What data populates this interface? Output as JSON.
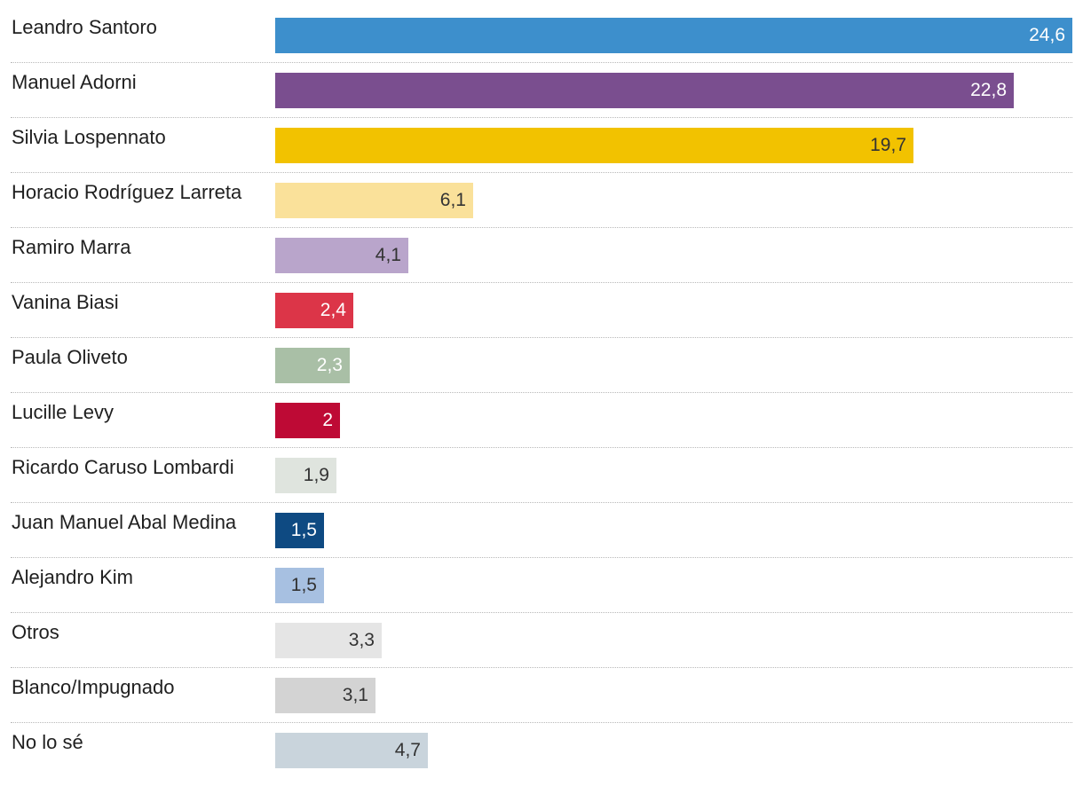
{
  "chart_data": {
    "type": "bar",
    "orientation": "horizontal",
    "title": "",
    "xlabel": "",
    "ylabel": "",
    "xlim": [
      0,
      24.6
    ],
    "grid": false,
    "categories": [
      "Leandro Santoro",
      "Manuel Adorni",
      "Silvia Lospennato",
      "Horacio Rodríguez Larreta",
      "Ramiro Marra",
      "Vanina Biasi",
      "Paula Oliveto",
      "Lucille Levy",
      "Ricardo Caruso Lombardi",
      "Juan Manuel Abal Medina",
      "Alejandro Kim",
      "Otros",
      "Blanco/Impugnado",
      "No lo sé"
    ],
    "values": [
      24.6,
      22.8,
      19.7,
      6.1,
      4.1,
      2.4,
      2.3,
      2,
      1.9,
      1.5,
      1.5,
      3.3,
      3.1,
      4.7
    ],
    "value_labels": [
      "24,6",
      "22,8",
      "19,7",
      "6,1",
      "4,1",
      "2,4",
      "2,3",
      "2",
      "1,9",
      "1,5",
      "1,5",
      "3,3",
      "3,1",
      "4,7"
    ],
    "colors": [
      "#3d8fcc",
      "#7a4e8f",
      "#f2c200",
      "#fae19a",
      "#b9a5cb",
      "#dc3548",
      "#a9bfa6",
      "#be0a35",
      "#dfe4de",
      "#0e4a82",
      "#a7c0e1",
      "#e5e5e5",
      "#d3d3d3",
      "#c9d4dc"
    ],
    "label_colors": [
      "#ffffff",
      "#ffffff",
      "#333333",
      "#333333",
      "#333333",
      "#ffffff",
      "#ffffff",
      "#ffffff",
      "#333333",
      "#ffffff",
      "#333333",
      "#333333",
      "#333333",
      "#333333"
    ]
  }
}
